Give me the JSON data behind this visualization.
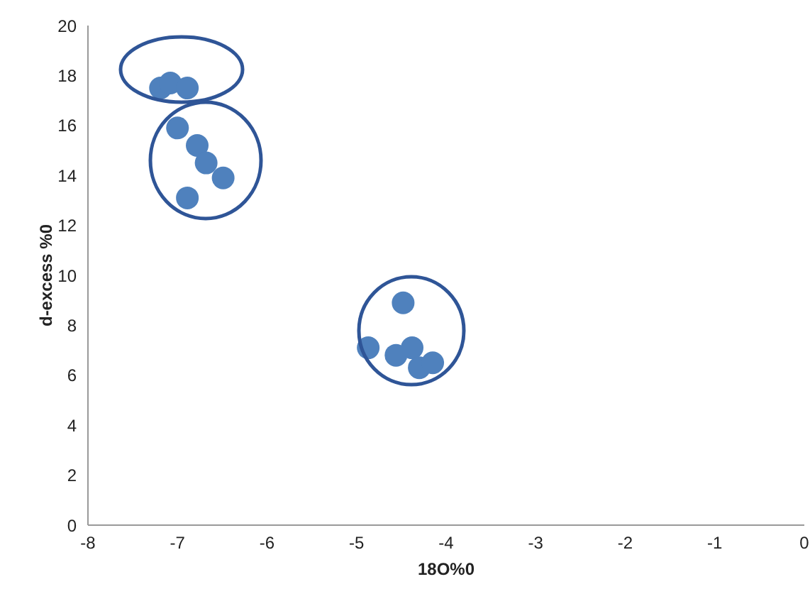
{
  "chart_data": {
    "type": "scatter",
    "xlabel": "18O%0",
    "ylabel": "d-excess %0",
    "x": [
      -7.19,
      -7.08,
      -6.89,
      -7.0,
      -6.78,
      -6.68,
      -6.49,
      -6.89,
      -4.48,
      -4.87,
      -4.56,
      -4.38,
      -4.3,
      -4.15
    ],
    "series": [
      {
        "color": "#4f81bd",
        "values": [
          17.5,
          17.7,
          17.5,
          15.9,
          15.2,
          14.5,
          13.9,
          13.1,
          8.9,
          7.1,
          6.8,
          7.1,
          6.3,
          6.5
        ]
      }
    ],
    "xlim": [
      -8,
      0
    ],
    "xticks": [
      -8,
      -7,
      -6,
      -5,
      -4,
      -3,
      -2,
      -1,
      0
    ],
    "ylim": [
      0,
      20
    ],
    "yticks": [
      0,
      2,
      4,
      6,
      8,
      10,
      12,
      14,
      16,
      18,
      20
    ],
    "grid": false,
    "legend": false,
    "marker": "circle"
  }
}
